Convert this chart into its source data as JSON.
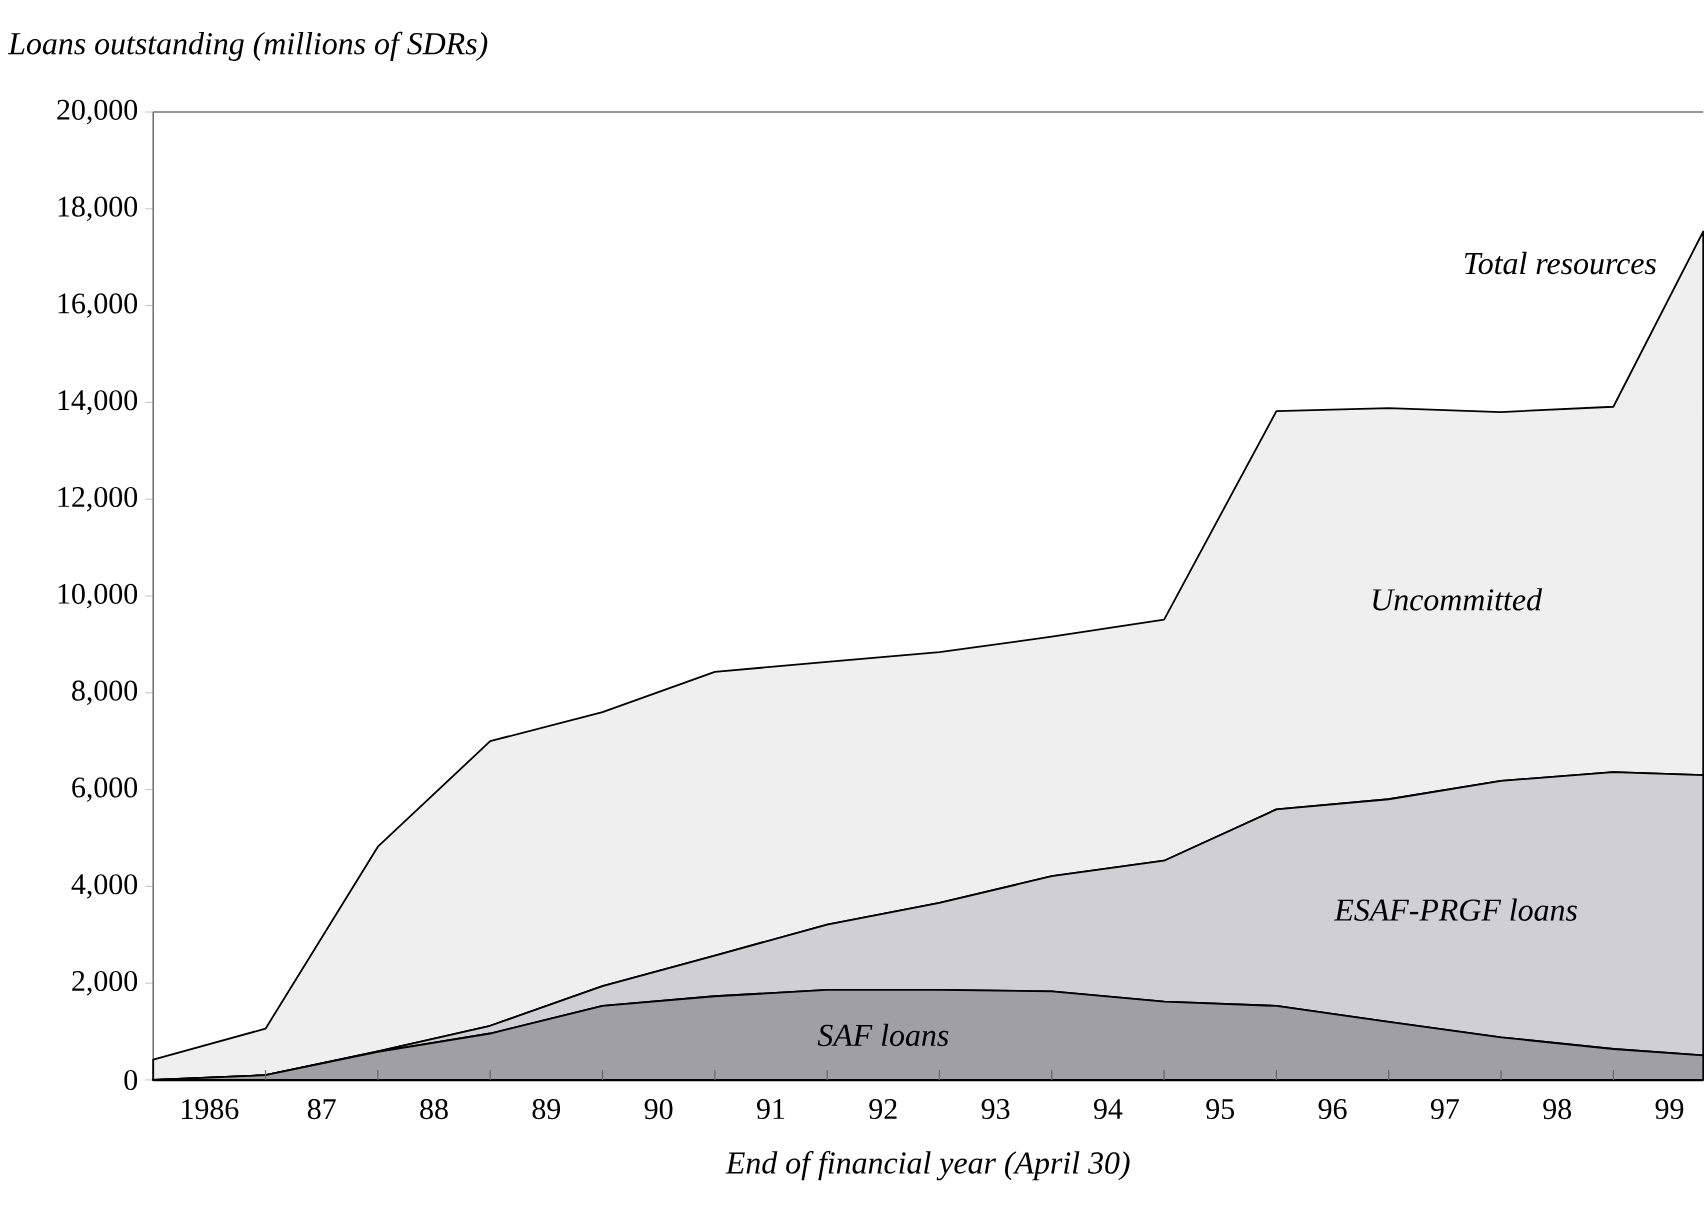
{
  "chart_data": {
    "type": "area",
    "stacked": true,
    "xlabel": "End of financial year (April 30)",
    "ylabel": "Loans outstanding (millions of SDRs)",
    "x": [
      1985.5,
      1986.5,
      1987.5,
      1988.5,
      1989.5,
      1990.5,
      1991.5,
      1992.5,
      1993.5,
      1994.5,
      1995.5,
      1996.5,
      1997.5,
      1998.5,
      1999.3
    ],
    "xlim": [
      1985.5,
      1999.3
    ],
    "xticks": [
      1986,
      {
        "value": 1987,
        "label": "87"
      },
      {
        "value": 1988,
        "label": "88"
      },
      {
        "value": 1989,
        "label": "89"
      },
      {
        "value": 1990,
        "label": "90"
      },
      {
        "value": 1991,
        "label": "91"
      },
      {
        "value": 1992,
        "label": "92"
      },
      {
        "value": 1993,
        "label": "93"
      },
      {
        "value": 1994,
        "label": "94"
      },
      {
        "value": 1995,
        "label": "95"
      },
      {
        "value": 1996,
        "label": "96"
      },
      {
        "value": 1997,
        "label": "97"
      },
      {
        "value": 1998,
        "label": "98"
      },
      {
        "value": 1999,
        "label": "99"
      },
      {
        "value": 1986.5,
        "label": null
      },
      {
        "value": 1987.5,
        "label": null
      },
      {
        "value": 1988.5,
        "label": null
      },
      {
        "value": 1989.5,
        "label": null
      },
      {
        "value": 1990.5,
        "label": null
      },
      {
        "value": 1991.5,
        "label": null
      },
      {
        "value": 1992.5,
        "label": null
      },
      {
        "value": 1993.5,
        "label": null
      },
      {
        "value": 1994.5,
        "label": null
      },
      {
        "value": 1995.5,
        "label": null
      },
      {
        "value": 1996.5,
        "label": null
      },
      {
        "value": 1997.5,
        "label": null
      },
      {
        "value": 1998.5,
        "label": null
      }
    ],
    "ylim": [
      0,
      20000
    ],
    "yticks": [
      0,
      {
        "value": 2000,
        "label": "2,000"
      },
      {
        "value": 4000,
        "label": "4,000"
      },
      {
        "value": 6000,
        "label": "6,000"
      },
      {
        "value": 8000,
        "label": "8,000"
      },
      {
        "value": 10000,
        "label": "10,000"
      },
      {
        "value": 12000,
        "label": "12,000"
      },
      {
        "value": 14000,
        "label": "14,000"
      },
      {
        "value": 16000,
        "label": "16,000"
      },
      {
        "value": 18000,
        "label": "18,000"
      },
      {
        "value": 20000,
        "label": "20,000"
      }
    ],
    "series": [
      {
        "name": "SAF loans",
        "color": "#a0a0a2",
        "values": [
          0,
          100,
          580,
          960,
          1530,
          1730,
          1860,
          1860,
          1830,
          1620,
          1530,
          1200,
          880,
          640,
          510
        ]
      },
      {
        "name": "ESAF-PRGF loans",
        "color": "#d0d0d2",
        "values": [
          0,
          0,
          10,
          160,
          410,
          840,
          1350,
          1800,
          2380,
          2910,
          4060,
          4600,
          5300,
          5720,
          5790
        ]
      },
      {
        "name": "Uncommitted",
        "color": "#efefef",
        "values": [
          420,
          960,
          4230,
          5880,
          5660,
          5860,
          5430,
          5180,
          4950,
          4980,
          8230,
          8080,
          7620,
          7550,
          11230
        ]
      }
    ],
    "annotations": [
      "Total resources"
    ],
    "grid": false
  }
}
